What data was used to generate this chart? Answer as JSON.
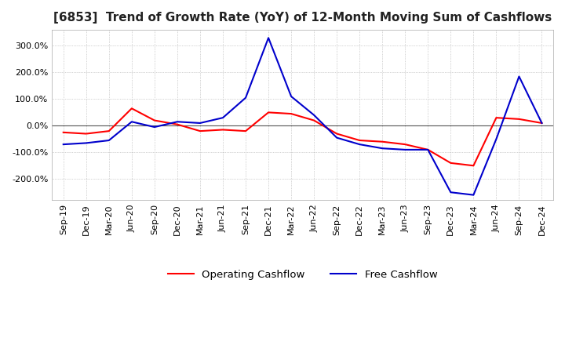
{
  "title": "[6853]  Trend of Growth Rate (YoY) of 12-Month Moving Sum of Cashflows",
  "title_fontsize": 11,
  "ylim": [
    -280,
    360
  ],
  "yticks": [
    -200,
    -100,
    0,
    100,
    200,
    300
  ],
  "legend_labels": [
    "Operating Cashflow",
    "Free Cashflow"
  ],
  "line_colors": [
    "#ff0000",
    "#0000cc"
  ],
  "background_color": "#ffffff",
  "plot_bg_color": "#ffffff",
  "grid_color": "#aaaaaa",
  "dates": [
    "Sep-19",
    "Dec-19",
    "Mar-20",
    "Jun-20",
    "Sep-20",
    "Dec-20",
    "Mar-21",
    "Jun-21",
    "Sep-21",
    "Dec-21",
    "Mar-22",
    "Jun-22",
    "Sep-22",
    "Dec-22",
    "Mar-23",
    "Jun-23",
    "Sep-23",
    "Dec-23",
    "Mar-24",
    "Jun-24",
    "Sep-24",
    "Dec-24"
  ],
  "operating_cashflow": [
    -25,
    -30,
    -20,
    65,
    20,
    5,
    -20,
    -15,
    -20,
    50,
    45,
    20,
    -30,
    -55,
    -60,
    -70,
    -90,
    -140,
    -150,
    30,
    25,
    10
  ],
  "free_cashflow": [
    -70,
    -65,
    -55,
    15,
    -5,
    15,
    10,
    30,
    105,
    330,
    110,
    40,
    -45,
    -70,
    -85,
    -90,
    -90,
    -250,
    -260,
    -50,
    185,
    10
  ]
}
